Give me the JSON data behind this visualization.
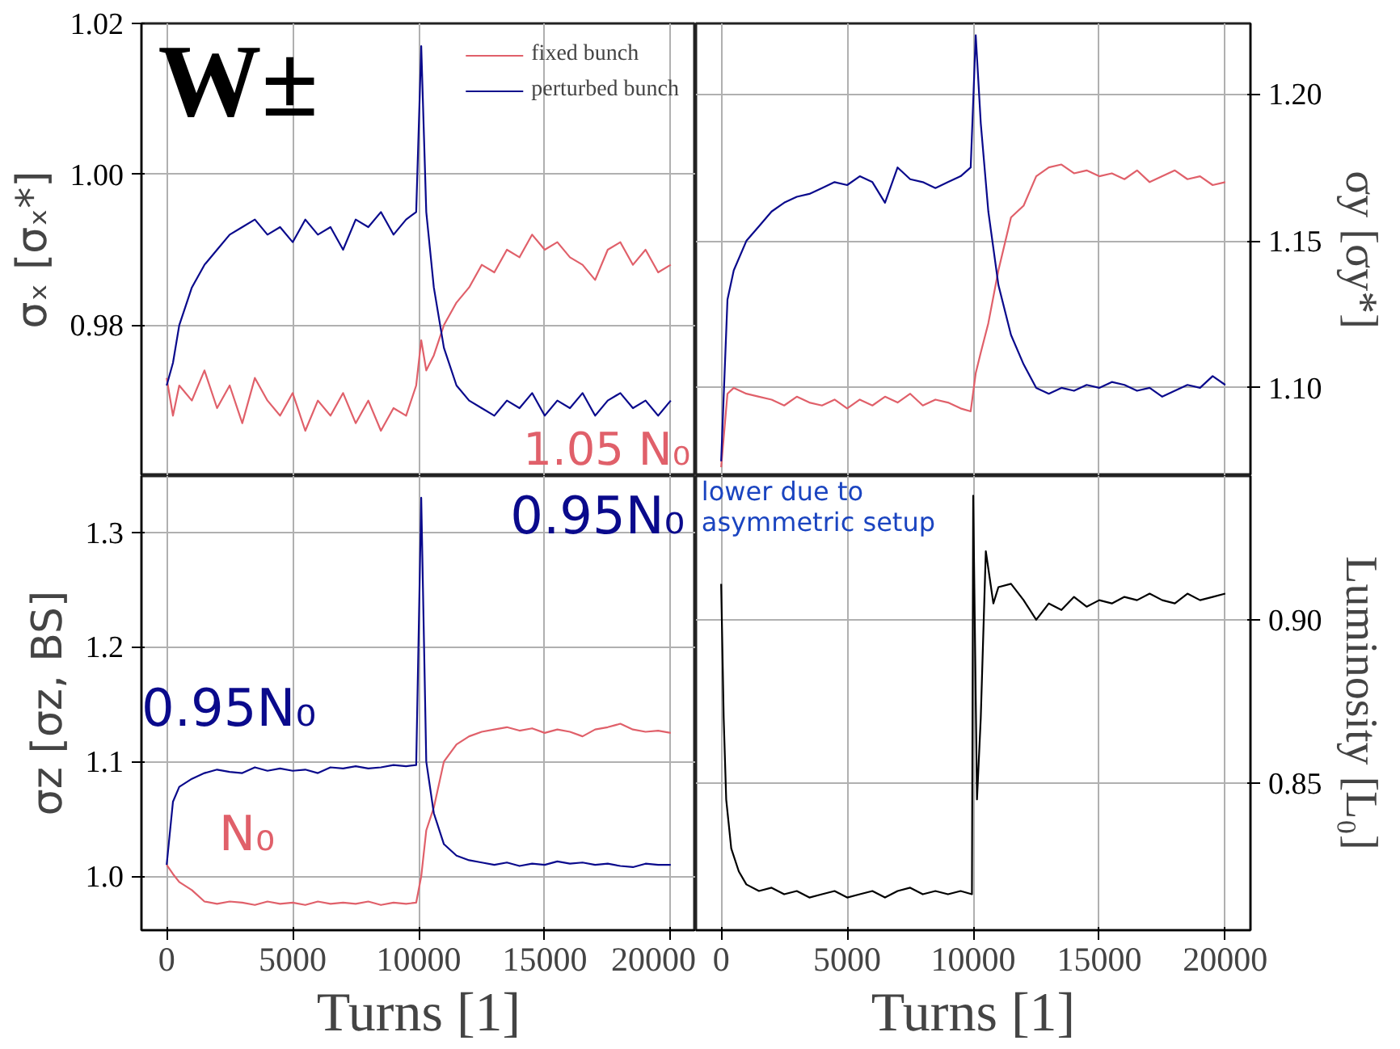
{
  "chart_data": [
    {
      "type": "line",
      "ylabel": "σₓ [σₓ*]",
      "annotations": [
        "W±",
        "1.05 N₀"
      ],
      "legend": "top right",
      "grid": true,
      "tick_labels": "y",
      "xlim": [
        -1000,
        21000
      ],
      "xticks": [
        0,
        5000,
        10000,
        15000,
        20000
      ],
      "ylim": [
        0.96,
        1.02
      ],
      "yticks": [
        {
          "value": 0.98,
          "label": "0.98"
        },
        {
          "value": 1.0,
          "label": "1.00"
        },
        {
          "value": 1.02,
          "label": "1.02"
        }
      ],
      "x": [
        0,
        250,
        500,
        1000,
        1500,
        2000,
        2500,
        3000,
        3500,
        4000,
        4500,
        5000,
        5500,
        6000,
        6500,
        7000,
        7500,
        8000,
        8500,
        9000,
        9500,
        9900,
        10100,
        10300,
        10600,
        11000,
        11500,
        12000,
        12500,
        13000,
        13500,
        14000,
        14500,
        15000,
        15500,
        16000,
        16500,
        17000,
        17500,
        18000,
        18500,
        19000,
        19500,
        20000
      ],
      "series": [
        {
          "name": "fixed bunch",
          "color": "#e0606a",
          "values": [
            0.973,
            0.968,
            0.972,
            0.97,
            0.974,
            0.969,
            0.972,
            0.967,
            0.973,
            0.97,
            0.968,
            0.971,
            0.966,
            0.97,
            0.968,
            0.971,
            0.967,
            0.97,
            0.966,
            0.969,
            0.968,
            0.972,
            0.978,
            0.974,
            0.976,
            0.98,
            0.983,
            0.985,
            0.988,
            0.987,
            0.99,
            0.989,
            0.992,
            0.99,
            0.991,
            0.989,
            0.988,
            0.986,
            0.99,
            0.991,
            0.988,
            0.99,
            0.987,
            0.988
          ]
        },
        {
          "name": "perturbed bunch",
          "color": "#0a0a8c",
          "values": [
            0.972,
            0.975,
            0.98,
            0.985,
            0.988,
            0.99,
            0.992,
            0.993,
            0.994,
            0.992,
            0.993,
            0.991,
            0.994,
            0.992,
            0.993,
            0.99,
            0.994,
            0.993,
            0.995,
            0.992,
            0.994,
            0.995,
            1.017,
            0.995,
            0.985,
            0.977,
            0.972,
            0.97,
            0.969,
            0.968,
            0.97,
            0.969,
            0.971,
            0.968,
            0.97,
            0.969,
            0.971,
            0.968,
            0.97,
            0.971,
            0.969,
            0.97,
            0.968,
            0.97
          ]
        }
      ]
    },
    {
      "type": "line",
      "y2label": "σy [σy*]",
      "grid": true,
      "tick_labels": "y",
      "xlim": [
        -1000,
        21000
      ],
      "xticks": [
        0,
        5000,
        10000,
        15000,
        20000
      ],
      "y2lim": [
        1.07,
        1.224
      ],
      "y2ticks": [
        {
          "value": 1.1,
          "label": "1.10"
        },
        {
          "value": 1.15,
          "label": "1.15"
        },
        {
          "value": 1.2,
          "label": "1.20"
        }
      ],
      "x": [
        0,
        250,
        500,
        1000,
        1500,
        2000,
        2500,
        3000,
        3500,
        4000,
        4500,
        5000,
        5500,
        6000,
        6500,
        7000,
        7500,
        8000,
        8500,
        9000,
        9500,
        9900,
        10100,
        10300,
        10600,
        11000,
        11500,
        12000,
        12500,
        13000,
        13500,
        14000,
        14500,
        15000,
        15500,
        16000,
        16500,
        17000,
        17500,
        18000,
        18500,
        19000,
        19500,
        20000
      ],
      "series": [
        {
          "color": "#e0606a",
          "axis": "y2",
          "values": [
            1.073,
            1.098,
            1.1,
            1.098,
            1.097,
            1.096,
            1.094,
            1.097,
            1.095,
            1.094,
            1.096,
            1.093,
            1.096,
            1.094,
            1.097,
            1.095,
            1.098,
            1.094,
            1.096,
            1.095,
            1.093,
            1.092,
            1.105,
            1.112,
            1.122,
            1.14,
            1.158,
            1.162,
            1.172,
            1.175,
            1.176,
            1.173,
            1.174,
            1.172,
            1.173,
            1.171,
            1.174,
            1.17,
            1.172,
            1.174,
            1.171,
            1.172,
            1.169,
            1.17
          ]
        },
        {
          "color": "#0a0a8c",
          "axis": "y2",
          "values": [
            1.075,
            1.13,
            1.14,
            1.15,
            1.155,
            1.16,
            1.163,
            1.165,
            1.166,
            1.168,
            1.17,
            1.169,
            1.172,
            1.17,
            1.163,
            1.175,
            1.171,
            1.17,
            1.168,
            1.17,
            1.172,
            1.175,
            1.22,
            1.19,
            1.16,
            1.135,
            1.118,
            1.108,
            1.1,
            1.098,
            1.1,
            1.099,
            1.101,
            1.1,
            1.102,
            1.101,
            1.099,
            1.1,
            1.097,
            1.099,
            1.101,
            1.1,
            1.104,
            1.101
          ]
        }
      ]
    },
    {
      "type": "line",
      "xlabel": "Turns [1]",
      "ylabel": "σz [σz, BS]",
      "annotations": [
        "0.95N₀",
        "0.95N₀",
        "N₀"
      ],
      "grid": true,
      "xlim": [
        -1000,
        21000
      ],
      "xticks": [
        0,
        5000,
        10000,
        15000,
        20000
      ],
      "ylim": [
        0.953,
        1.349
      ],
      "yticks": [
        {
          "value": 1.0,
          "label": "1.0"
        },
        1.1,
        1.2,
        1.3
      ],
      "x": [
        0,
        250,
        500,
        1000,
        1500,
        2000,
        2500,
        3000,
        3500,
        4000,
        4500,
        5000,
        5500,
        6000,
        6500,
        7000,
        7500,
        8000,
        8500,
        9000,
        9500,
        9900,
        10100,
        10300,
        10600,
        11000,
        11500,
        12000,
        12500,
        13000,
        13500,
        14000,
        14500,
        15000,
        15500,
        16000,
        16500,
        17000,
        17500,
        18000,
        18500,
        19000,
        19500,
        20000
      ],
      "series": [
        {
          "color": "#e0606a",
          "values": [
            1.01,
            1.002,
            0.995,
            0.988,
            0.978,
            0.976,
            0.978,
            0.977,
            0.975,
            0.978,
            0.976,
            0.977,
            0.975,
            0.978,
            0.976,
            0.977,
            0.976,
            0.978,
            0.975,
            0.977,
            0.976,
            0.977,
            1.0,
            1.04,
            1.06,
            1.1,
            1.115,
            1.122,
            1.126,
            1.128,
            1.13,
            1.127,
            1.129,
            1.125,
            1.128,
            1.126,
            1.122,
            1.128,
            1.13,
            1.133,
            1.128,
            1.126,
            1.127,
            1.125
          ]
        },
        {
          "color": "#0a0a8c",
          "values": [
            1.01,
            1.065,
            1.078,
            1.085,
            1.09,
            1.093,
            1.091,
            1.09,
            1.095,
            1.092,
            1.094,
            1.092,
            1.093,
            1.09,
            1.095,
            1.094,
            1.096,
            1.094,
            1.095,
            1.097,
            1.096,
            1.097,
            1.33,
            1.1,
            1.055,
            1.028,
            1.018,
            1.014,
            1.012,
            1.01,
            1.012,
            1.009,
            1.011,
            1.01,
            1.013,
            1.011,
            1.012,
            1.01,
            1.011,
            1.009,
            1.008,
            1.011,
            1.01,
            1.01
          ]
        }
      ]
    },
    {
      "type": "line",
      "xlabel": "Turns [1]",
      "y2label": "Luminosity [L₀]",
      "annotations": [
        "lower due to\nasymmetric setup"
      ],
      "grid": true,
      "xlim": [
        -1000,
        21000
      ],
      "xticks": [
        0,
        5000,
        10000,
        15000,
        20000
      ],
      "y2lim": [
        0.805,
        0.944
      ],
      "y2ticks": [
        {
          "value": 0.85,
          "label": "0.85"
        },
        {
          "value": 0.9,
          "label": "0.90"
        }
      ],
      "series": [
        {
          "color": "#000000",
          "axis": "y2",
          "x": [
            0,
            100,
            200,
            400,
            700,
            1000,
            1500,
            2000,
            2500,
            3000,
            3500,
            4000,
            4500,
            5000,
            5500,
            6000,
            6500,
            7000,
            7500,
            8000,
            8500,
            9000,
            9500,
            9950,
            10000,
            10150,
            10300,
            10500,
            10800,
            11000,
            11500,
            12000,
            12500,
            13000,
            13500,
            14000,
            14500,
            15000,
            15500,
            16000,
            16500,
            17000,
            17500,
            18000,
            18500,
            19000,
            19500,
            20000
          ],
          "values": [
            0.911,
            0.87,
            0.845,
            0.83,
            0.823,
            0.819,
            0.817,
            0.818,
            0.816,
            0.817,
            0.815,
            0.816,
            0.817,
            0.815,
            0.816,
            0.817,
            0.815,
            0.817,
            0.818,
            0.816,
            0.817,
            0.816,
            0.817,
            0.816,
            0.938,
            0.845,
            0.87,
            0.921,
            0.905,
            0.91,
            0.911,
            0.906,
            0.9,
            0.905,
            0.903,
            0.907,
            0.904,
            0.906,
            0.905,
            0.907,
            0.906,
            0.908,
            0.906,
            0.905,
            0.908,
            0.906,
            0.907,
            0.908
          ]
        }
      ]
    }
  ]
}
